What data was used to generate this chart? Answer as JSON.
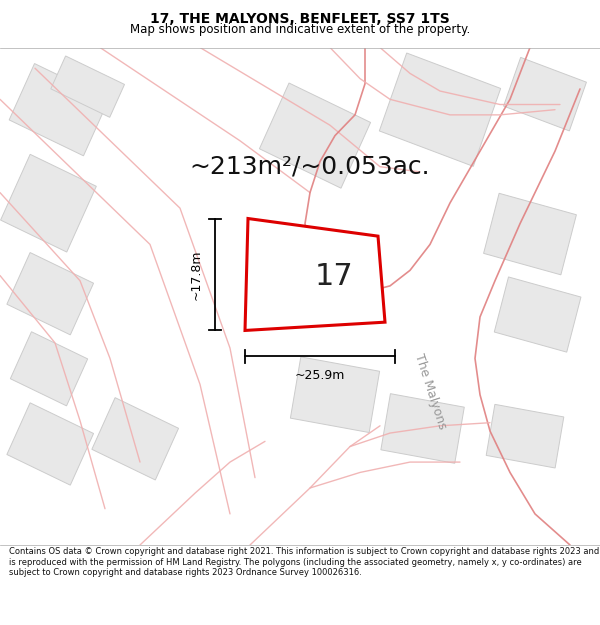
{
  "title_line1": "17, THE MALYONS, BENFLEET, SS7 1TS",
  "title_line2": "Map shows position and indicative extent of the property.",
  "area_text": "~213m²/~0.053ac.",
  "plot_label": "17",
  "dim_width": "~25.9m",
  "dim_height": "~17.8m",
  "street_label": "The Malyons",
  "footer_text": "Contains OS data © Crown copyright and database right 2021. This information is subject to Crown copyright and database rights 2023 and is reproduced with the permission of HM Land Registry. The polygons (including the associated geometry, namely x, y co-ordinates) are subject to Crown copyright and database rights 2023 Ordnance Survey 100026316.",
  "map_bg": "#ffffff",
  "road_color": "#f0b0b0",
  "road_color2": "#e08080",
  "bld_fill": "#e8e8e8",
  "bld_edge": "#cccccc",
  "plot_outline_color": "#dd0000",
  "title_bg": "#ffffff",
  "footer_bg": "#ffffff",
  "title_fontsize": 10,
  "subtitle_fontsize": 8.5,
  "area_fontsize": 18,
  "dim_fontsize": 9,
  "label_fontsize": 22
}
